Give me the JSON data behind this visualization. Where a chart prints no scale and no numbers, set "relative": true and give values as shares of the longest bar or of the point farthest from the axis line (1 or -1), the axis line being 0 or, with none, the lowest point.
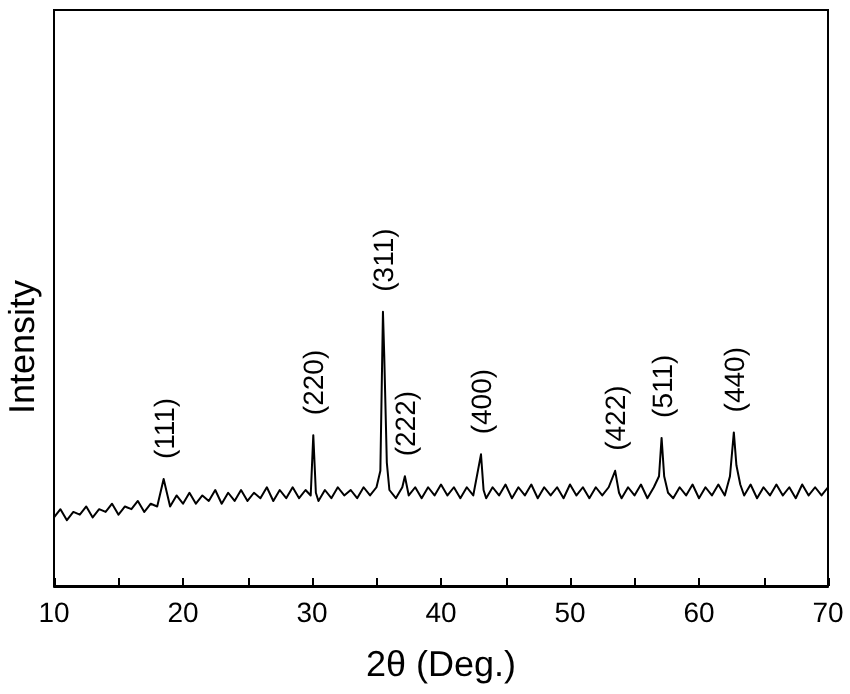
{
  "chart_data": {
    "type": "line",
    "relative": true,
    "xlabel": "2θ (Deg.)",
    "ylabel": "Intensity",
    "xlim": [
      10,
      70
    ],
    "xticks": [
      10,
      20,
      30,
      40,
      50,
      60,
      70
    ],
    "grid": false,
    "marker": "none",
    "line_style": "solid",
    "series": [
      {
        "color": "#000000",
        "x": [
          10,
          10.5,
          11,
          11.5,
          12,
          12.5,
          13,
          13.5,
          14,
          14.5,
          15,
          15.5,
          16,
          16.5,
          17,
          17.5,
          18,
          18.5,
          18.8,
          19,
          19.5,
          20,
          20.5,
          21,
          21.5,
          22,
          22.5,
          23,
          23.5,
          24,
          24.5,
          25,
          25.5,
          26,
          26.5,
          27,
          27.5,
          28,
          28.5,
          29,
          29.5,
          29.9,
          30.1,
          30.3,
          30.5,
          31,
          31.5,
          32,
          32.5,
          33,
          33.5,
          34,
          34.5,
          35,
          35.3,
          35.5,
          35.6,
          35.8,
          36,
          36.5,
          37,
          37.2,
          37.5,
          38,
          38.5,
          39,
          39.5,
          40,
          40.5,
          41,
          41.5,
          42,
          42.5,
          43.1,
          43.3,
          43.5,
          44,
          44.5,
          45,
          45.5,
          46,
          46.5,
          47,
          47.5,
          48,
          48.5,
          49,
          49.5,
          50,
          50.5,
          51,
          51.5,
          52,
          52.5,
          53,
          53.5,
          53.8,
          54,
          54.5,
          55,
          55.5,
          56,
          56.5,
          56.9,
          57.1,
          57.3,
          57.6,
          58,
          58.5,
          59,
          59.5,
          60,
          60.5,
          61,
          61.5,
          62,
          62.4,
          62.7,
          62.9,
          63.2,
          63.5,
          64,
          64.5,
          65,
          65.5,
          66,
          66.5,
          67,
          67.5,
          68,
          68.5,
          69,
          69.5,
          70
        ],
        "values": [
          0.25,
          0.28,
          0.24,
          0.27,
          0.26,
          0.29,
          0.25,
          0.28,
          0.27,
          0.3,
          0.26,
          0.29,
          0.28,
          0.31,
          0.27,
          0.3,
          0.29,
          0.39,
          0.33,
          0.29,
          0.33,
          0.3,
          0.34,
          0.3,
          0.33,
          0.31,
          0.35,
          0.3,
          0.34,
          0.31,
          0.35,
          0.31,
          0.34,
          0.32,
          0.36,
          0.31,
          0.35,
          0.32,
          0.36,
          0.32,
          0.35,
          0.33,
          0.55,
          0.34,
          0.31,
          0.35,
          0.32,
          0.36,
          0.33,
          0.35,
          0.32,
          0.36,
          0.33,
          0.36,
          0.42,
          1.0,
          0.84,
          0.45,
          0.35,
          0.32,
          0.36,
          0.4,
          0.33,
          0.36,
          0.32,
          0.36,
          0.33,
          0.37,
          0.33,
          0.36,
          0.32,
          0.36,
          0.33,
          0.48,
          0.35,
          0.32,
          0.36,
          0.33,
          0.37,
          0.32,
          0.36,
          0.33,
          0.37,
          0.32,
          0.36,
          0.33,
          0.36,
          0.32,
          0.37,
          0.33,
          0.36,
          0.32,
          0.36,
          0.33,
          0.36,
          0.42,
          0.34,
          0.32,
          0.36,
          0.33,
          0.37,
          0.32,
          0.36,
          0.4,
          0.54,
          0.4,
          0.34,
          0.32,
          0.36,
          0.33,
          0.37,
          0.32,
          0.36,
          0.33,
          0.37,
          0.33,
          0.4,
          0.56,
          0.44,
          0.37,
          0.33,
          0.37,
          0.32,
          0.36,
          0.33,
          0.37,
          0.33,
          0.36,
          0.32,
          0.37,
          0.33,
          0.36,
          0.33,
          0.36
        ]
      }
    ],
    "annotations": [
      {
        "text": "(111)",
        "x": 18.5,
        "y": 0.39
      },
      {
        "text": "(220)",
        "x": 30.1,
        "y": 0.55
      },
      {
        "text": "(311)",
        "x": 35.5,
        "y": 1.0
      },
      {
        "text": "(222)",
        "x": 37.2,
        "y": 0.4
      },
      {
        "text": "(400)",
        "x": 43.1,
        "y": 0.48
      },
      {
        "text": "(422)",
        "x": 53.5,
        "y": 0.42
      },
      {
        "text": "(511)",
        "x": 57.1,
        "y": 0.54
      },
      {
        "text": "(440)",
        "x": 62.7,
        "y": 0.56
      }
    ]
  }
}
